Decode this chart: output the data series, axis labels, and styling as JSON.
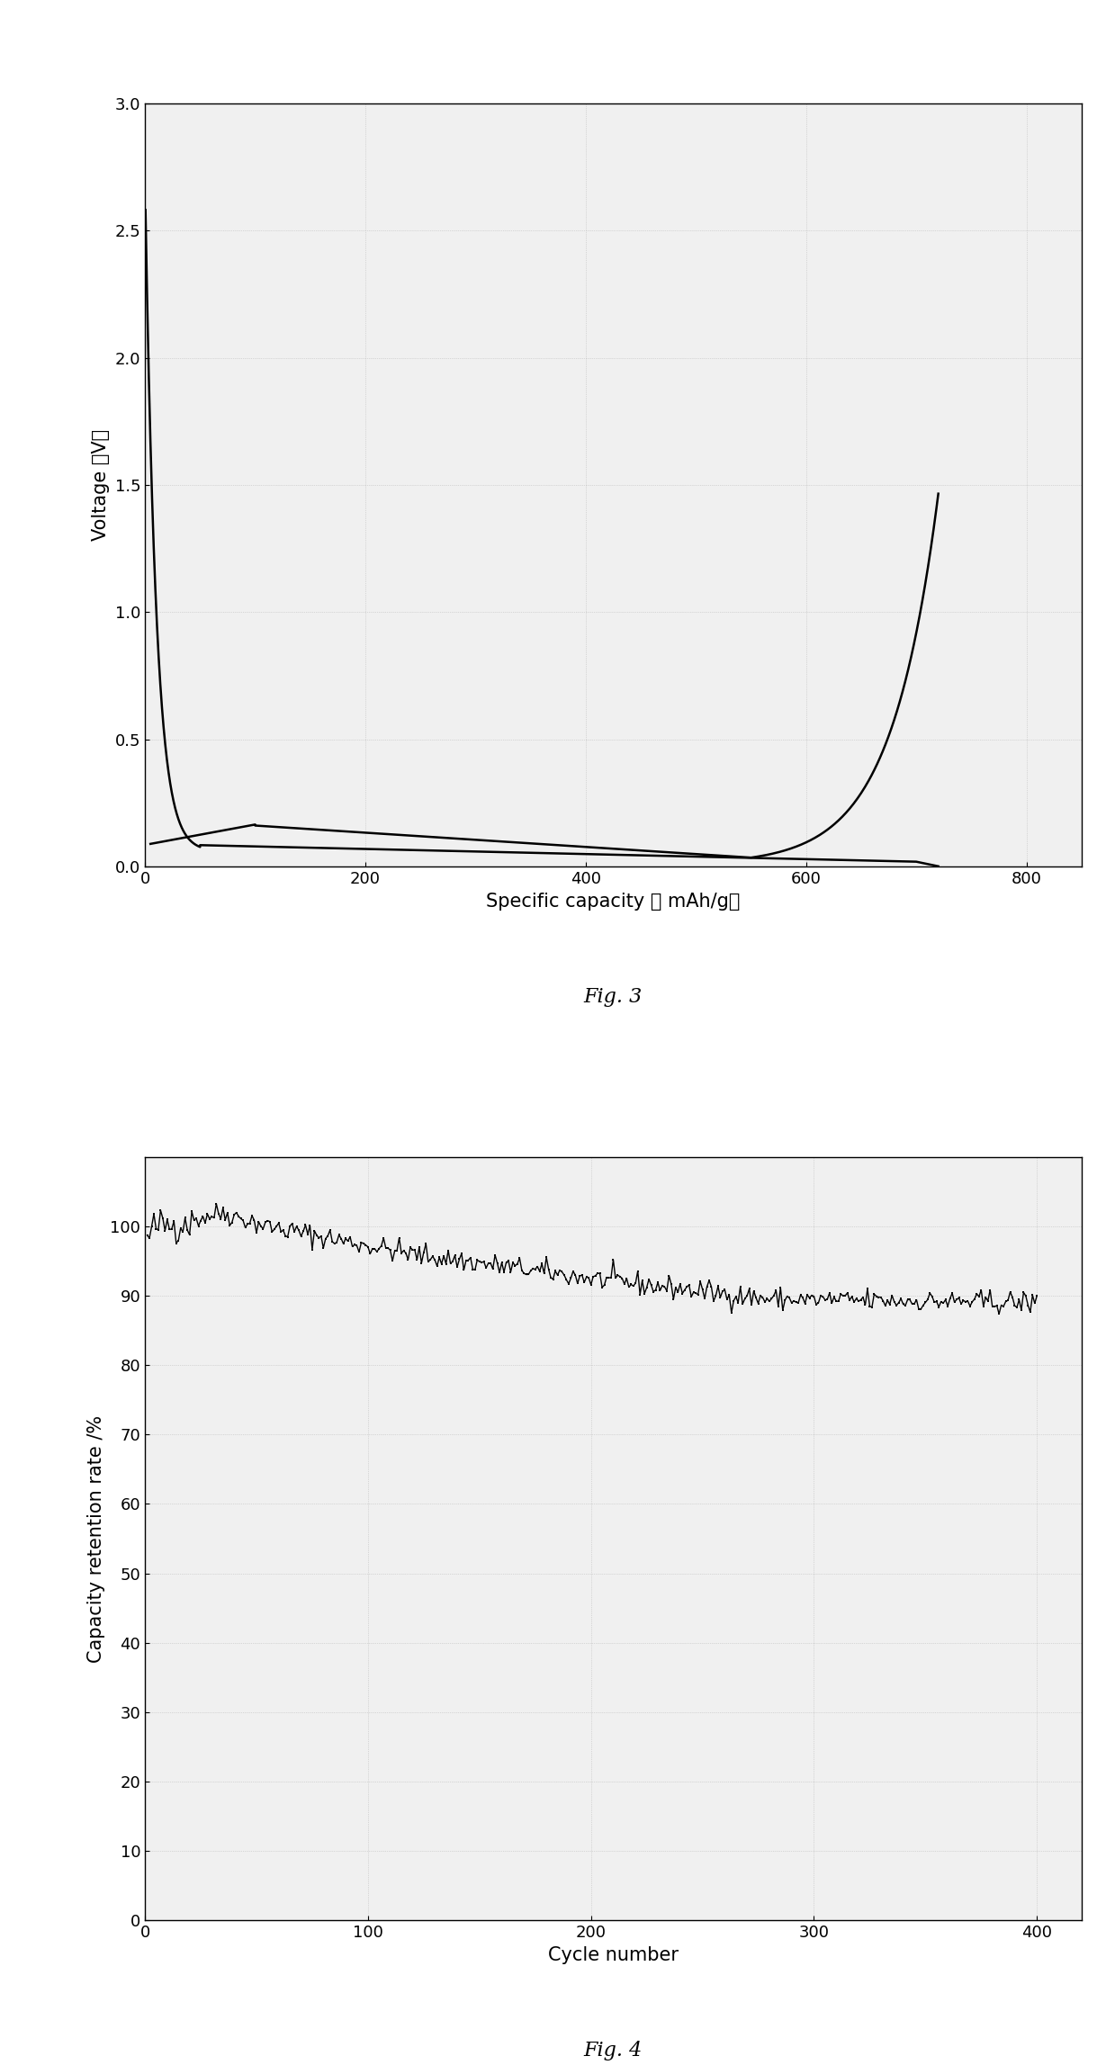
{
  "fig3": {
    "xlabel": "Specific capacity （ mAh/g）",
    "ylabel": "Voltage （V）",
    "xlim": [
      0,
      850
    ],
    "ylim": [
      0.0,
      3.0
    ],
    "xticks": [
      0,
      200,
      400,
      600,
      800
    ],
    "yticks": [
      0.0,
      0.5,
      1.0,
      1.5,
      2.0,
      2.5,
      3.0
    ]
  },
  "fig4": {
    "xlabel": "Cycle number",
    "ylabel": "Capacity retention rate /%",
    "xlim": [
      0,
      420
    ],
    "ylim": [
      0,
      110
    ],
    "xticks": [
      0,
      100,
      200,
      300,
      400
    ],
    "yticks": [
      0,
      10,
      20,
      30,
      40,
      50,
      60,
      70,
      80,
      90,
      100
    ]
  },
  "bg_color": "#f0f0f0",
  "line_color": "#000000",
  "caption_fontsize": 16,
  "label_fontsize": 15,
  "tick_fontsize": 13
}
